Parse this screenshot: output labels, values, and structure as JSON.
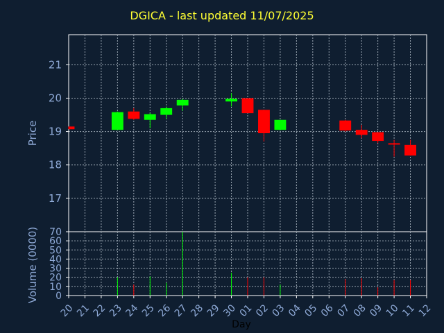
{
  "title": "DGICA - last updated 11/07/2025",
  "colors": {
    "background": "#0f1e30",
    "frame": "#ffffff",
    "grid": "#9aa6b2",
    "axis_text": "#8ea9d6",
    "title": "#ffff33",
    "up": "#00ff00",
    "down": "#ff0000"
  },
  "chart_data": [
    {
      "type": "candlestick",
      "ylabel": "Price",
      "ylim": [
        16.0,
        21.9
      ],
      "yticks": [
        17,
        18,
        19,
        20,
        21
      ],
      "grid": true,
      "x_tick_labels": [
        "20",
        "21",
        "22",
        "23",
        "24",
        "25",
        "26",
        "27",
        "28",
        "29",
        "30",
        "01",
        "02",
        "03",
        "04",
        "05",
        "06",
        "07",
        "08",
        "09",
        "10",
        "11",
        "12"
      ],
      "candles": [
        {
          "day": "20",
          "open": 19.15,
          "high": 19.15,
          "low": 19.07,
          "close": 19.07
        },
        {
          "day": "23",
          "open": 19.05,
          "high": 19.6,
          "low": 19.05,
          "close": 19.58
        },
        {
          "day": "24",
          "open": 19.6,
          "high": 19.7,
          "low": 19.35,
          "close": 19.38
        },
        {
          "day": "25",
          "open": 19.35,
          "high": 19.55,
          "low": 19.1,
          "close": 19.52
        },
        {
          "day": "26",
          "open": 19.5,
          "high": 19.75,
          "low": 19.38,
          "close": 19.7
        },
        {
          "day": "27",
          "open": 19.78,
          "high": 19.98,
          "low": 19.62,
          "close": 19.95
        },
        {
          "day": "30",
          "open": 19.9,
          "high": 20.15,
          "low": 19.75,
          "close": 19.98
        },
        {
          "day": "01",
          "open": 20.0,
          "high": 20.0,
          "low": 19.55,
          "close": 19.55
        },
        {
          "day": "02",
          "open": 19.65,
          "high": 19.65,
          "low": 18.7,
          "close": 18.95
        },
        {
          "day": "03",
          "open": 19.05,
          "high": 19.35,
          "low": 19.05,
          "close": 19.35
        },
        {
          "day": "07",
          "open": 19.33,
          "high": 19.35,
          "low": 19.0,
          "close": 19.03
        },
        {
          "day": "08",
          "open": 19.05,
          "high": 19.2,
          "low": 18.8,
          "close": 18.9
        },
        {
          "day": "09",
          "open": 18.98,
          "high": 18.98,
          "low": 18.65,
          "close": 18.72
        },
        {
          "day": "10",
          "open": 18.65,
          "high": 18.75,
          "low": 18.25,
          "close": 18.63
        },
        {
          "day": "11",
          "open": 18.6,
          "high": 18.75,
          "low": 18.28,
          "close": 18.28
        }
      ]
    },
    {
      "type": "bar",
      "ylabel": "Volume (0000)",
      "xlabel": "Day",
      "ylim": [
        0,
        70
      ],
      "yticks": [
        0,
        10,
        20,
        30,
        40,
        50,
        60,
        70
      ],
      "grid": true,
      "bars": [
        {
          "day": "20",
          "value": 0,
          "direction": "down"
        },
        {
          "day": "23",
          "value": 20,
          "direction": "up"
        },
        {
          "day": "24",
          "value": 12,
          "direction": "down"
        },
        {
          "day": "25",
          "value": 21,
          "direction": "up"
        },
        {
          "day": "26",
          "value": 14,
          "direction": "up"
        },
        {
          "day": "27",
          "value": 70,
          "direction": "up"
        },
        {
          "day": "30",
          "value": 25,
          "direction": "up"
        },
        {
          "day": "01",
          "value": 20,
          "direction": "down"
        },
        {
          "day": "02",
          "value": 20,
          "direction": "down"
        },
        {
          "day": "03",
          "value": 12,
          "direction": "up"
        },
        {
          "day": "07",
          "value": 18,
          "direction": "down"
        },
        {
          "day": "08",
          "value": 19,
          "direction": "down"
        },
        {
          "day": "09",
          "value": 9,
          "direction": "down"
        },
        {
          "day": "10",
          "value": 17,
          "direction": "down"
        },
        {
          "day": "11",
          "value": 17,
          "direction": "down"
        }
      ]
    }
  ]
}
